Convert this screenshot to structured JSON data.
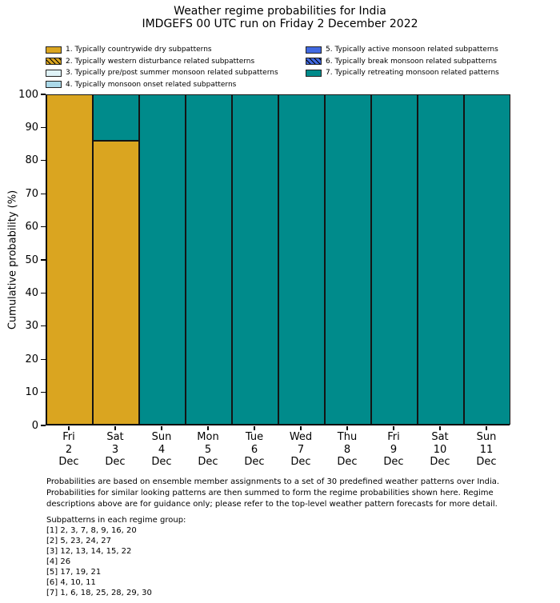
{
  "chart_data": {
    "type": "stacked_bar",
    "title": "Weather regime probabilities for India",
    "subtitle": "IMDGEFS 00 UTC run on Friday 2 December 2022",
    "ylabel": "Cumulative probability (%)",
    "ylim": [
      0,
      100
    ],
    "yticks": [
      0,
      10,
      20,
      30,
      40,
      50,
      60,
      70,
      80,
      90,
      100
    ],
    "grid": false,
    "legend": {
      "columns": 2,
      "split_index": 4,
      "position": "top-left-of-plot"
    },
    "categories": [
      {
        "day": "Fri",
        "date": "2",
        "month": "Dec"
      },
      {
        "day": "Sat",
        "date": "3",
        "month": "Dec"
      },
      {
        "day": "Sun",
        "date": "4",
        "month": "Dec"
      },
      {
        "day": "Mon",
        "date": "5",
        "month": "Dec"
      },
      {
        "day": "Tue",
        "date": "6",
        "month": "Dec"
      },
      {
        "day": "Wed",
        "date": "7",
        "month": "Dec"
      },
      {
        "day": "Thu",
        "date": "8",
        "month": "Dec"
      },
      {
        "day": "Fri",
        "date": "9",
        "month": "Dec"
      },
      {
        "day": "Sat",
        "date": "10",
        "month": "Dec"
      },
      {
        "day": "Sun",
        "date": "11",
        "month": "Dec"
      }
    ],
    "series": [
      {
        "label": "1. Typically countrywide dry subpatterns",
        "color": "#DAA520",
        "hatch": false,
        "values": [
          100,
          86,
          0,
          0,
          0,
          0,
          0,
          0,
          0,
          0
        ]
      },
      {
        "label": "2. Typically western disturbance related subpatterns",
        "color": "#DAA520",
        "hatch": true,
        "values": [
          0,
          0,
          0,
          0,
          0,
          0,
          0,
          0,
          0,
          0
        ]
      },
      {
        "label": "3. Typically pre/post summer monsoon related subpatterns",
        "color": "#E0F3F8",
        "hatch": false,
        "values": [
          0,
          0,
          0,
          0,
          0,
          0,
          0,
          0,
          0,
          0
        ]
      },
      {
        "label": "4. Typically monsoon onset related subpatterns",
        "color": "#ABD9E9",
        "hatch": false,
        "values": [
          0,
          0,
          0,
          0,
          0,
          0,
          0,
          0,
          0,
          0
        ]
      },
      {
        "label": "5. Typically active monsoon related subpatterns",
        "color": "#4169E1",
        "hatch": false,
        "values": [
          0,
          0,
          0,
          0,
          0,
          0,
          0,
          0,
          0,
          0
        ]
      },
      {
        "label": "6. Typically break monsoon related subpatterns",
        "color": "#4169E1",
        "hatch": true,
        "values": [
          0,
          0,
          0,
          0,
          0,
          0,
          0,
          0,
          0,
          0
        ]
      },
      {
        "label": "7. Typically retreating monsoon related patterns",
        "color": "#008B8B",
        "hatch": false,
        "values": [
          0,
          14,
          100,
          100,
          100,
          100,
          100,
          100,
          100,
          100
        ]
      }
    ],
    "bar_edge_color": "#141414"
  },
  "footnote": {
    "lines": [
      "Probabilities are based on ensemble member assignments to a set of 30 predefined weather patterns over India.",
      "Probabilities for similar looking patterns are then summed to form the regime probabilities shown here. Regime",
      "descriptions above are for guidance only; please refer to the top-level weather pattern forecasts for more detail."
    ]
  },
  "subpatterns": {
    "heading": "Subpatterns in each regime group:",
    "groups": [
      "[1] 2, 3, 7, 8, 9, 16, 20",
      "[2] 5, 23, 24, 27",
      "[3] 12, 13, 14, 15, 22",
      "[4] 26",
      "[5] 17, 19, 21",
      "[6] 4, 10, 11",
      "[7] 1, 6, 18, 25, 28, 29, 30"
    ]
  }
}
